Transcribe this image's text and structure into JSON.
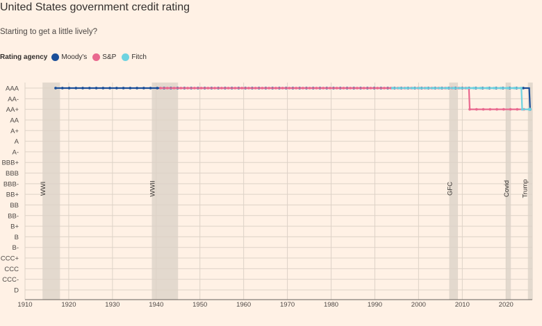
{
  "header": {
    "title": "United States government credit rating",
    "subtitle": "Starting to get a little lively?"
  },
  "legend": {
    "title": "Rating agency",
    "items": [
      {
        "label": "Moody's",
        "color": "#1b4f99"
      },
      {
        "label": "S&P",
        "color": "#e9698f"
      },
      {
        "label": "Fitch",
        "color": "#6dd3e0"
      }
    ]
  },
  "chart_data": {
    "type": "line",
    "title": "United States government credit rating",
    "subtitle": "Starting to get a little lively?",
    "xlabel": "",
    "ylabel": "",
    "xlim": [
      1910,
      2026
    ],
    "x_ticks": [
      1910,
      1920,
      1930,
      1940,
      1950,
      1960,
      1970,
      1980,
      1990,
      2000,
      2010,
      2020
    ],
    "y_categories": [
      "AAA",
      "AA-",
      "AA+",
      "AA",
      "A+",
      "A",
      "A-",
      "BBB+",
      "BBB",
      "BBB-",
      "BB+",
      "BB",
      "BB-",
      "B+",
      "B",
      "B-",
      "CCC+",
      "CCC",
      "CCC-",
      "D"
    ],
    "grid": true,
    "legend_position": "top-left",
    "shaded_periods": [
      {
        "label": "WWI",
        "start": 1914,
        "end": 1918
      },
      {
        "label": "WWII",
        "start": 1939,
        "end": 1945
      },
      {
        "label": "GFC",
        "start": 2007,
        "end": 2009
      },
      {
        "label": "Covid",
        "start": 2020,
        "end": 2021
      },
      {
        "label": "Trump",
        "start": 2025,
        "end": 2025.4
      }
    ],
    "series": [
      {
        "name": "Moody's",
        "color": "#1b4f99",
        "points": [
          [
            1917,
            "AAA"
          ],
          [
            2025.3,
            "AAA"
          ],
          [
            2025.5,
            "AA+"
          ]
        ]
      },
      {
        "name": "S&P",
        "color": "#e9698f",
        "points": [
          [
            1941,
            "AAA"
          ],
          [
            2011.5,
            "AAA"
          ],
          [
            2011.7,
            "AA+"
          ],
          [
            2025.5,
            "AA+"
          ]
        ]
      },
      {
        "name": "Fitch",
        "color": "#6dd3e0",
        "points": [
          [
            1994,
            "AAA"
          ],
          [
            2023.5,
            "AAA"
          ],
          [
            2023.7,
            "AA+"
          ],
          [
            2025.5,
            "AA+"
          ]
        ]
      }
    ]
  }
}
